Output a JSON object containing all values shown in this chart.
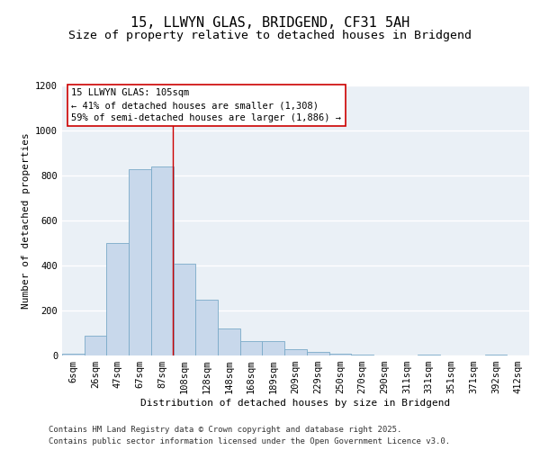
{
  "title": "15, LLWYN GLAS, BRIDGEND, CF31 5AH",
  "subtitle": "Size of property relative to detached houses in Bridgend",
  "xlabel": "Distribution of detached houses by size in Bridgend",
  "ylabel": "Number of detached properties",
  "bar_color": "#c8d8eb",
  "bar_edge_color": "#7aaac8",
  "background_color": "#eaf0f6",
  "grid_color": "#ffffff",
  "categories": [
    "6sqm",
    "26sqm",
    "47sqm",
    "67sqm",
    "87sqm",
    "108sqm",
    "128sqm",
    "148sqm",
    "168sqm",
    "189sqm",
    "209sqm",
    "229sqm",
    "250sqm",
    "270sqm",
    "290sqm",
    "311sqm",
    "331sqm",
    "351sqm",
    "371sqm",
    "392sqm",
    "412sqm"
  ],
  "values": [
    10,
    90,
    500,
    830,
    840,
    410,
    250,
    120,
    65,
    65,
    30,
    15,
    10,
    5,
    0,
    0,
    5,
    0,
    0,
    5,
    0
  ],
  "ylim": [
    0,
    1200
  ],
  "yticks": [
    0,
    200,
    400,
    600,
    800,
    1000,
    1200
  ],
  "property_label": "15 LLWYN GLAS: 105sqm",
  "annotation_line1": "← 41% of detached houses are smaller (1,308)",
  "annotation_line2": "59% of semi-detached houses are larger (1,886) →",
  "vline_color": "#cc0000",
  "box_edge_color": "#cc0000",
  "footer_line1": "Contains HM Land Registry data © Crown copyright and database right 2025.",
  "footer_line2": "Contains public sector information licensed under the Open Government Licence v3.0.",
  "title_fontsize": 11,
  "subtitle_fontsize": 9.5,
  "axis_label_fontsize": 8,
  "tick_fontsize": 7.5,
  "footer_fontsize": 6.5,
  "annotation_fontsize": 7.5,
  "vline_x": 4.47
}
